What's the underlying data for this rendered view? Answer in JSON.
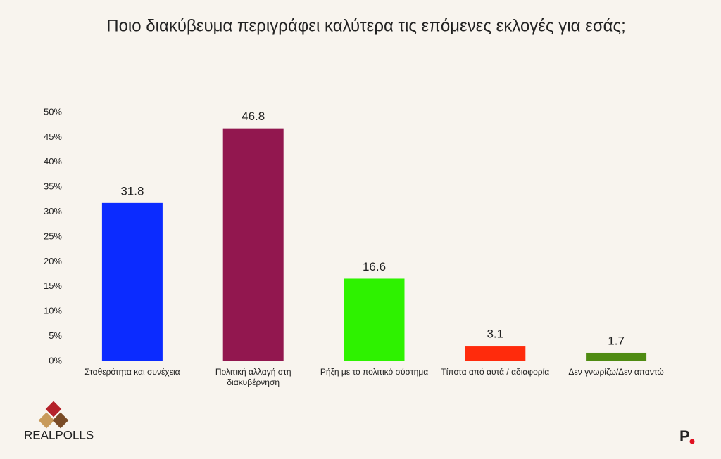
{
  "chart_data": {
    "type": "bar",
    "title": "Ποιο διακύβευμα περιγράφει καλύτερα τις επόμενες εκλογές για εσάς;",
    "categories": [
      "Σταθερότητα και συνέχεια",
      "Πολιτική αλλαγή στη διακυβέρνηση",
      "Ρήξη με το πολιτικό σύστημα",
      "Τίποτα από αυτά / αδιαφορία",
      "Δεν γνωρίζω/Δεν απαντώ"
    ],
    "values": [
      31.8,
      46.8,
      16.6,
      3.1,
      1.7
    ],
    "colors": [
      "#0b2bff",
      "#92174f",
      "#2ef200",
      "#ff2b0c",
      "#4f8b12"
    ],
    "ylim": [
      0,
      50
    ],
    "yticks": [
      {
        "value": 0,
        "label": "0%"
      },
      {
        "value": 5,
        "label": "5%"
      },
      {
        "value": 10,
        "label": "10%"
      },
      {
        "value": 15,
        "label": "15%"
      },
      {
        "value": 20,
        "label": "20%"
      },
      {
        "value": 25,
        "label": "25%"
      },
      {
        "value": 30,
        "label": "30%"
      },
      {
        "value": 35,
        "label": "35%"
      },
      {
        "value": 40,
        "label": "40%"
      },
      {
        "value": 45,
        "label": "45%"
      },
      {
        "value": 50,
        "label": "50%"
      }
    ],
    "grid": false
  },
  "branding": {
    "left": "REALPOLLS",
    "right": "P"
  }
}
